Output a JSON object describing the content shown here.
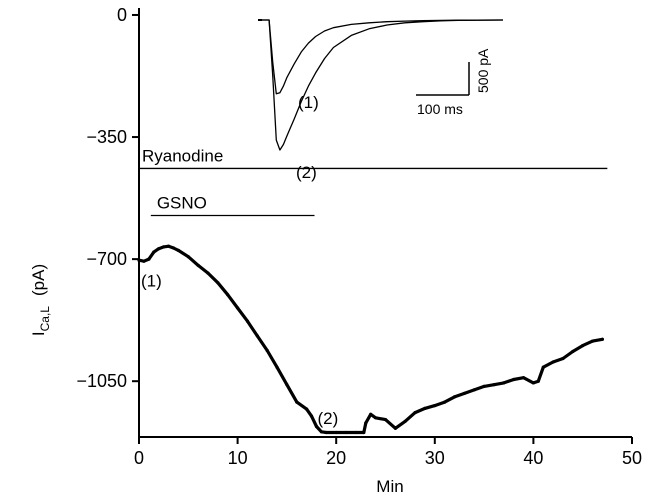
{
  "chart_data": [
    {
      "type": "line",
      "xlabel": "Min",
      "ylabel": "I",
      "ylabel_sub": "Ca,L",
      "ylabel_unit": "(pA)",
      "xlim": [
        0,
        50
      ],
      "ylim": [
        -1210,
        20
      ],
      "x_ticks": [
        0,
        10,
        20,
        30,
        40,
        50
      ],
      "y_ticks": [
        0,
        -350,
        -700,
        -1050
      ],
      "grid": false,
      "bars": [
        {
          "label": "Ryanodine",
          "x": [
            0,
            47.5
          ],
          "y": -440
        },
        {
          "label": "GSNO",
          "x": [
            1.2,
            17.8
          ],
          "y": -575
        }
      ],
      "annotations": [
        {
          "text": "(1)",
          "x": 0.2,
          "y": -762
        },
        {
          "text": "(2)",
          "x": 18.1,
          "y": -1155
        }
      ],
      "series": [
        {
          "x": [
            0,
            0.5,
            1,
            1.5,
            2,
            2.5,
            3,
            3.5,
            4,
            5,
            6,
            7,
            8,
            9,
            10,
            11,
            12,
            13,
            14,
            15,
            16,
            17,
            17.5,
            18,
            18.5,
            19,
            20,
            21,
            22,
            22.8,
            23,
            23.5,
            24,
            25,
            26,
            27,
            28,
            29,
            30,
            31,
            32,
            33,
            34,
            35,
            36,
            37,
            38,
            39,
            40,
            40.5,
            41,
            42,
            43,
            44,
            45,
            46,
            47
          ],
          "y": [
            -703,
            -706,
            -700,
            -680,
            -670,
            -665,
            -663,
            -668,
            -675,
            -693,
            -718,
            -740,
            -768,
            -802,
            -840,
            -878,
            -920,
            -962,
            -1010,
            -1060,
            -1110,
            -1130,
            -1150,
            -1180,
            -1195,
            -1197,
            -1197,
            -1197,
            -1197,
            -1197,
            -1170,
            -1145,
            -1155,
            -1160,
            -1185,
            -1165,
            -1140,
            -1128,
            -1120,
            -1110,
            -1095,
            -1085,
            -1075,
            -1065,
            -1060,
            -1055,
            -1045,
            -1040,
            -1055,
            -1050,
            -1010,
            -995,
            -985,
            -965,
            -948,
            -935,
            -930
          ]
        }
      ]
    },
    {
      "type": "line",
      "inset": true,
      "scale_bars": [
        {
          "label": "100 ms",
          "orientation": "horizontal",
          "value_ms": 100
        },
        {
          "label": "500 pA",
          "orientation": "vertical",
          "value_pA": 500
        }
      ],
      "series": [
        {
          "name": "(1)",
          "t_ms": [
            0,
            8,
            12,
            16,
            20,
            24,
            28,
            36,
            44,
            52,
            60,
            70,
            80,
            100,
            120,
            140,
            160,
            180,
            200,
            220,
            240,
            270
          ],
          "pA": [
            0,
            0,
            -380,
            -670,
            -660,
            -600,
            -520,
            -400,
            -290,
            -210,
            -150,
            -100,
            -70,
            -40,
            -25,
            -15,
            -10,
            -6,
            -4,
            -2,
            -1,
            0
          ]
        },
        {
          "name": "(2)",
          "t_ms": [
            0,
            8,
            12,
            16,
            20,
            24,
            28,
            36,
            44,
            52,
            60,
            70,
            80,
            100,
            120,
            140,
            160,
            180,
            200,
            220,
            240,
            270
          ],
          "pA": [
            0,
            0,
            -500,
            -1090,
            -1180,
            -1130,
            -1050,
            -900,
            -740,
            -600,
            -480,
            -350,
            -250,
            -140,
            -80,
            -45,
            -25,
            -15,
            -8,
            -4,
            -2,
            0
          ]
        }
      ]
    }
  ]
}
